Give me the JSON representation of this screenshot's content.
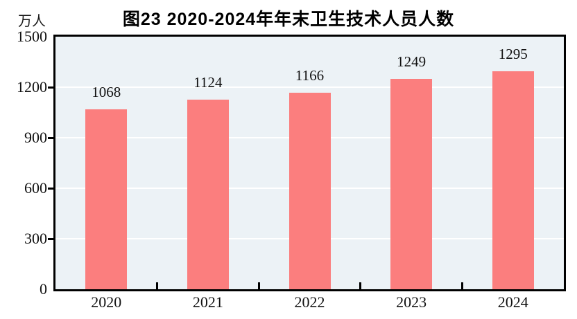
{
  "figure": {
    "title": "图23  2020-2024年年末卫生技术人员人数",
    "unit_label": "万人"
  },
  "chart_data": {
    "type": "bar",
    "title": "图23  2020-2024年年末卫生技术人员人数",
    "ylabel": "万人",
    "xlabel": "",
    "categories": [
      "2020",
      "2021",
      "2022",
      "2023",
      "2024"
    ],
    "values": [
      1068,
      1124,
      1166,
      1249,
      1295
    ],
    "value_labels": [
      "1068",
      "1124",
      "1166",
      "1249",
      "1295"
    ],
    "ylim": [
      0,
      1500
    ],
    "yticks": [
      0,
      300,
      600,
      900,
      1200,
      1500
    ],
    "grid": "horizontal",
    "legend": "none",
    "colors": {
      "bar": "#FB7E7E",
      "plot_background": "#ECF2F6",
      "gridline": "#FFFFFF",
      "axis": "#000000",
      "text": "#111111",
      "page_background": "#FFFFFF"
    }
  }
}
